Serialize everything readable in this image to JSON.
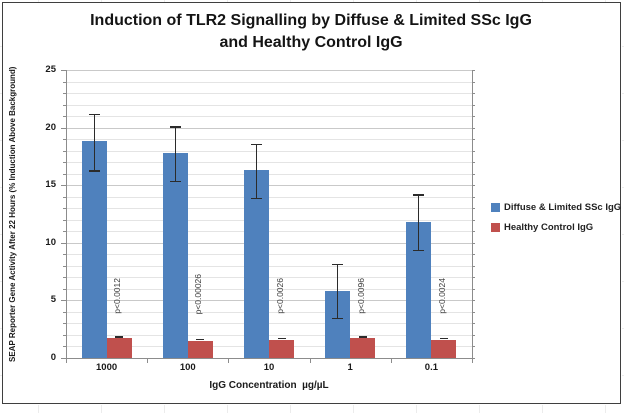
{
  "chart": {
    "title_line1": "Induction of TLR2 Signalling by Diffuse & Limited SSc IgG",
    "title_line2": "and Healthy Control IgG",
    "ylabel": "SEAP Reporter Gene Activity After 22 Hours (% Induction Above Background)",
    "xlabel": "IgG Concentration  µg/µL"
  },
  "chart_data": {
    "type": "bar",
    "title": "Induction of TLR2 Signalling by Diffuse & Limited SSc IgG and Healthy Control IgG",
    "xlabel": "IgG Concentration µg/µL",
    "ylabel": "SEAP Reporter Gene Activity After 22 Hours (% Induction Above Background)",
    "ylim": [
      0,
      25
    ],
    "ytick_step": 5,
    "yticks": [
      0,
      5,
      10,
      15,
      20,
      25
    ],
    "minor_grid_step": 1,
    "grid": true,
    "legend_position": "right",
    "categories": [
      "1000",
      "100",
      "10",
      "1",
      "0.1"
    ],
    "series": [
      {
        "name": "Diffuse & Limited  SSc IgG",
        "color": "#4F81BD",
        "values": [
          18.8,
          17.8,
          16.3,
          5.8,
          11.8
        ],
        "error_high": [
          21.2,
          20.1,
          18.6,
          8.2,
          14.2
        ],
        "error_low": [
          16.3,
          15.4,
          13.9,
          3.5,
          9.4
        ]
      },
      {
        "name": "Healthy Control  IgG",
        "color": "#C0504D",
        "values": [
          1.7,
          1.5,
          1.6,
          1.7,
          1.6
        ],
        "error_cap": true
      }
    ],
    "p_value_labels": [
      "p<0.0012",
      "p<0.00026",
      "p<0.0026",
      "p<0.0096",
      "p<0.0024"
    ]
  },
  "colors": {
    "axis": "#8C8C8C",
    "grid_minor": "#E4E4E4",
    "grid_major": "#C9C9C9",
    "error_bar": "#2B2B2B",
    "border": "#3F3F3F",
    "series_blue": "#4F81BD",
    "series_red": "#C0504D"
  }
}
